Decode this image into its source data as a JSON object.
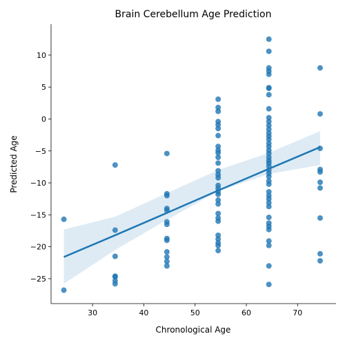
{
  "chart_data": {
    "type": "scatter",
    "title": "Brain Cerebellum Age Prediction",
    "x_label": "Chronological Age",
    "y_label": "Predicted Age",
    "color": "#1f77b4",
    "xlim": [
      21.9,
      77.5
    ],
    "ylim": [
      -28.9,
      14.85
    ],
    "xticks": [
      30,
      40,
      50,
      60,
      70
    ],
    "yticks": [
      {
        "value": -25,
        "label": "−25"
      },
      {
        "value": -20,
        "label": "−20"
      },
      {
        "value": -15,
        "label": "−15"
      },
      {
        "value": -10,
        "label": "−10"
      },
      {
        "value": -5,
        "label": "−5"
      },
      0,
      5,
      10
    ],
    "series": [
      {
        "x": [
          24.4,
          24.4,
          34.4,
          34.4,
          34.4,
          34.4,
          34.4,
          34.4,
          34.4,
          44.5,
          44.5,
          44.5,
          44.5,
          44.5,
          44.5,
          44.5,
          44.5,
          44.5,
          44.5,
          44.5,
          44.5,
          44.5,
          54.5,
          54.5,
          54.5,
          54.5,
          54.5,
          54.5,
          54.5,
          54.5,
          54.5,
          54.5,
          54.5,
          54.5,
          54.5,
          54.5,
          54.5,
          54.5,
          54.5,
          54.5,
          54.5,
          54.5,
          54.5,
          54.5,
          54.5,
          54.5,
          54.5,
          54.5,
          54.5,
          54.5,
          54.5,
          64.4,
          64.4,
          64.4,
          64.4,
          64.4,
          64.4,
          64.4,
          64.4,
          64.4,
          64.4,
          64.4,
          64.4,
          64.4,
          64.4,
          64.4,
          64.4,
          64.4,
          64.4,
          64.4,
          64.4,
          64.4,
          64.4,
          64.4,
          64.4,
          64.4,
          64.4,
          64.4,
          64.4,
          64.4,
          64.4,
          64.4,
          64.4,
          64.4,
          64.4,
          64.4,
          64.4,
          64.4,
          64.4,
          64.4,
          64.4,
          64.4,
          64.4,
          74.4,
          74.4,
          74.4,
          74.4,
          74.4,
          74.4,
          74.4,
          74.4,
          74.4,
          74.4
        ],
        "y": [
          -15.7,
          -26.8,
          -7.2,
          -17.4,
          -21.5,
          -24.6,
          -24.7,
          -25.3,
          -25.8,
          -5.4,
          -11.7,
          -12.0,
          -14.0,
          -14.3,
          -16.1,
          -16.5,
          -18.7,
          -19.0,
          -20.8,
          -21.6,
          -22.3,
          -23.0,
          3.1,
          1.8,
          1.2,
          -0.4,
          -0.9,
          -1.5,
          -2.6,
          -4.3,
          -4.9,
          -5.3,
          -6.0,
          -6.9,
          -8.1,
          -8.7,
          -9.2,
          -10.4,
          -10.9,
          -11.4,
          -11.8,
          -12.7,
          -13.3,
          -14.8,
          -15.5,
          -16.0,
          -18.2,
          -18.8,
          -19.4,
          -19.8,
          -20.6,
          12.5,
          10.6,
          8.0,
          7.5,
          7.0,
          4.9,
          4.8,
          3.8,
          1.6,
          0.2,
          -0.4,
          -1.0,
          -1.6,
          -2.2,
          -2.7,
          -3.2,
          -3.8,
          -4.3,
          -4.9,
          -5.4,
          -6.0,
          -6.5,
          -6.9,
          -7.4,
          -8.0,
          -8.5,
          -9.0,
          -9.7,
          -10.2,
          -11.4,
          -12.0,
          -12.5,
          -13.1,
          -13.7,
          -15.4,
          -16.3,
          -16.8,
          -17.3,
          -19.1,
          -19.8,
          -23.0,
          -25.9,
          8.0,
          0.8,
          -4.6,
          -7.9,
          -8.3,
          -9.9,
          -10.8,
          -15.5,
          -21.1,
          -22.2
        ]
      }
    ],
    "regression": {
      "x": [
        24.4,
        34.4,
        44.5,
        54.5,
        64.4,
        74.4
      ],
      "y": [
        -21.6,
        -18.2,
        -14.7,
        -11.2,
        -7.8,
        -4.4
      ],
      "ci_upper": [
        -17.3,
        -15.3,
        -11.6,
        -8.0,
        -5.3,
        -1.9
      ],
      "ci_lower": [
        -25.8,
        -20.5,
        -15.8,
        -11.3,
        -8.6,
        -7.2
      ]
    }
  }
}
